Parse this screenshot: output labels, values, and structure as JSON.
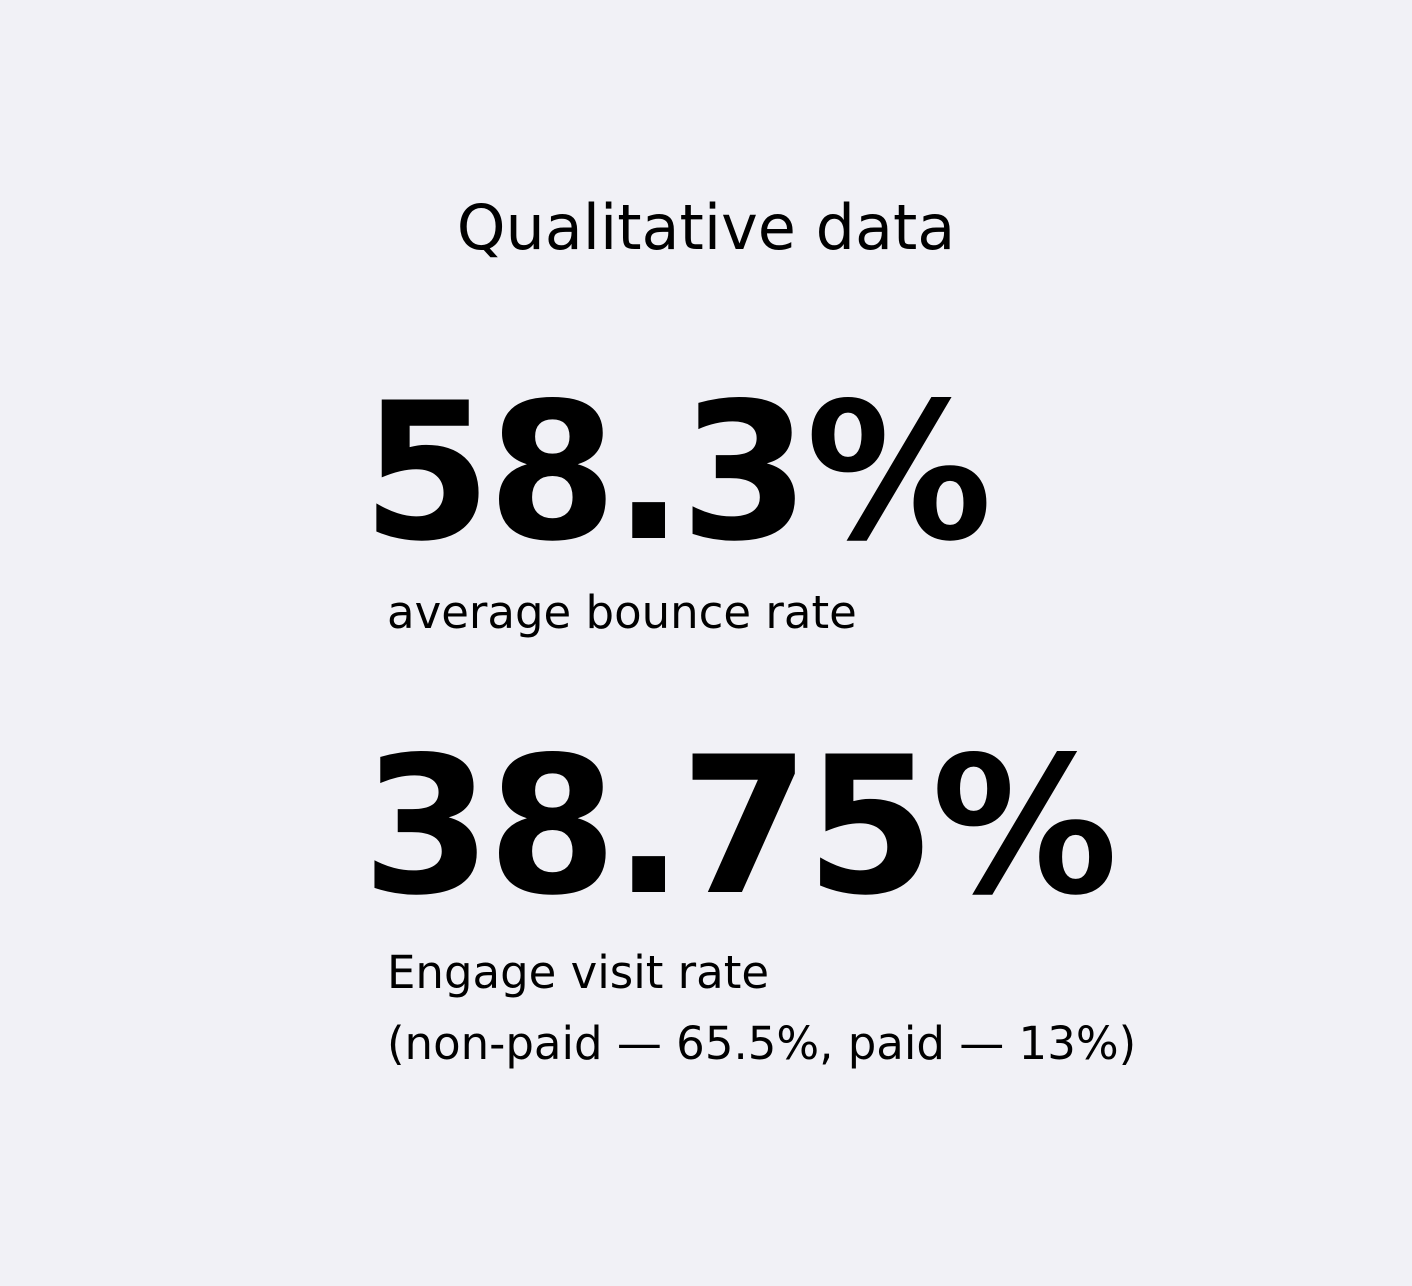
{
  "header": {
    "title": "Qualitative data"
  },
  "stats": [
    {
      "value": "58.3%",
      "label": "average bounce rate"
    },
    {
      "value": "38.75%",
      "label_line1": "Engage visit rate",
      "label_line2": "(non-paid — 65.5%, paid — 13%)"
    }
  ],
  "colors": {
    "background": "#f1f1f6",
    "text": "#000000"
  }
}
